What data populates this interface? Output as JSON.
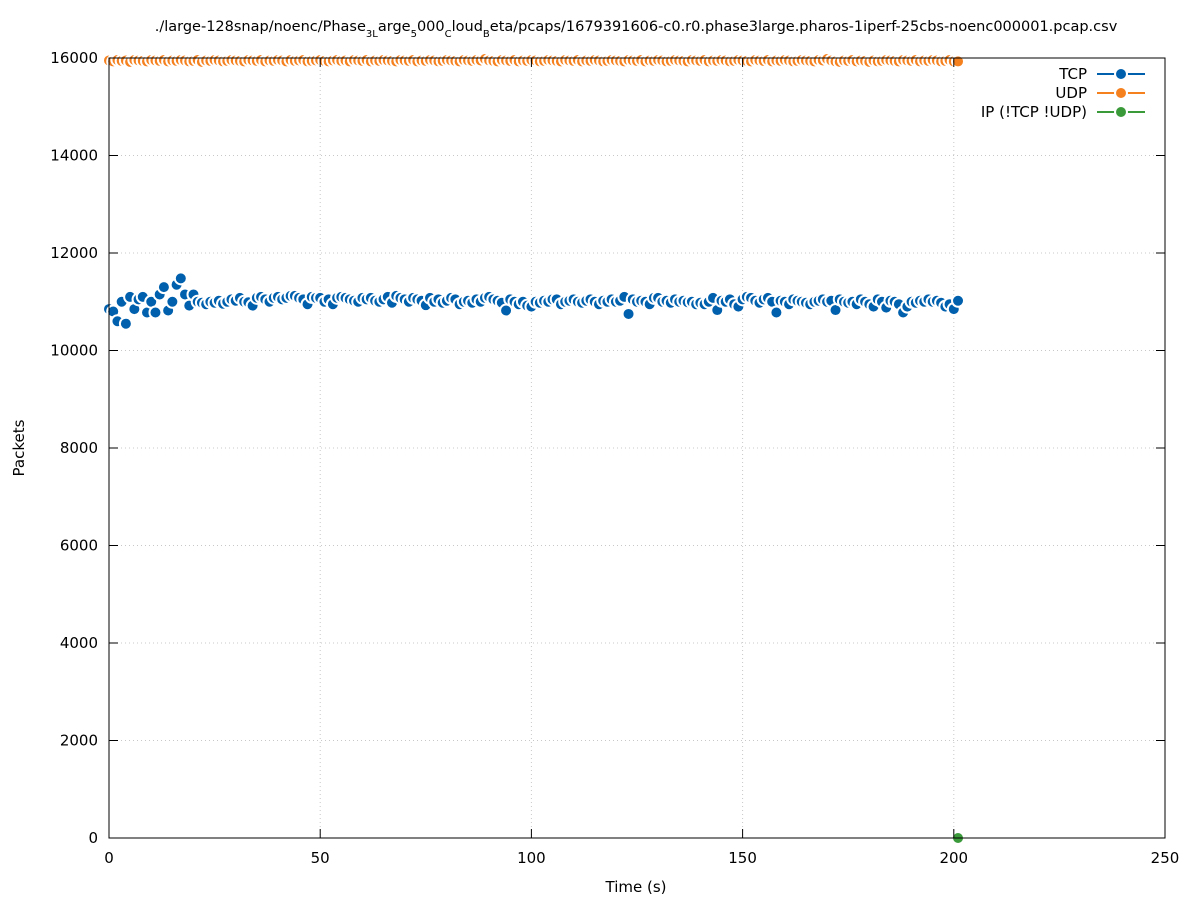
{
  "chart_data": {
    "type": "scatter",
    "title": [
      "./large-128snap/noenc/Phase",
      "3L",
      "arge",
      "5",
      "000",
      "C",
      "loud",
      "B",
      "eta/pcaps/1679391606-c0.r0.phase3large.pharos-1iperf-25cbs-noenc000001.pcap.csv"
    ],
    "x_label": "Time (s)",
    "y_label": "Packets",
    "xlim": [
      0,
      250
    ],
    "xticks": [
      0,
      50,
      100,
      150,
      200,
      250
    ],
    "ylim": [
      0,
      16000
    ],
    "yticks": [
      0,
      2000,
      4000,
      6000,
      8000,
      10000,
      12000,
      14000,
      16000
    ],
    "grid": true,
    "legend": "top right",
    "series": [
      {
        "name": "TCP",
        "color": "#0060ad",
        "x": [
          0,
          1,
          2,
          3,
          4,
          5,
          6,
          7,
          8,
          9,
          10,
          11,
          12,
          13,
          14,
          15,
          16,
          17,
          18,
          19,
          20,
          21,
          22,
          23,
          24,
          25,
          26,
          27,
          28,
          29,
          30,
          31,
          32,
          33,
          34,
          35,
          36,
          37,
          38,
          39,
          40,
          41,
          42,
          43,
          44,
          45,
          46,
          47,
          48,
          49,
          50,
          51,
          52,
          53,
          54,
          55,
          56,
          57,
          58,
          59,
          60,
          61,
          62,
          63,
          64,
          65,
          66,
          67,
          68,
          69,
          70,
          71,
          72,
          73,
          74,
          75,
          76,
          77,
          78,
          79,
          80,
          81,
          82,
          83,
          84,
          85,
          86,
          87,
          88,
          89,
          90,
          91,
          92,
          93,
          94,
          95,
          96,
          97,
          98,
          99,
          100,
          101,
          102,
          103,
          104,
          105,
          106,
          107,
          108,
          109,
          110,
          111,
          112,
          113,
          114,
          115,
          116,
          117,
          118,
          119,
          120,
          121,
          122,
          123,
          124,
          125,
          126,
          127,
          128,
          129,
          130,
          131,
          132,
          133,
          134,
          135,
          136,
          137,
          138,
          139,
          140,
          141,
          142,
          143,
          144,
          145,
          146,
          147,
          148,
          149,
          150,
          151,
          152,
          153,
          154,
          155,
          156,
          157,
          158,
          159,
          160,
          161,
          162,
          163,
          164,
          165,
          166,
          167,
          168,
          169,
          170,
          171,
          172,
          173,
          174,
          175,
          176,
          177,
          178,
          179,
          180,
          181,
          182,
          183,
          184,
          185,
          186,
          187,
          188,
          189,
          190,
          191,
          192,
          193,
          194,
          195,
          196,
          197,
          198,
          199,
          200,
          201
        ],
        "values": [
          10850,
          10800,
          10600,
          11000,
          10550,
          11100,
          10850,
          11050,
          11100,
          10780,
          11000,
          10780,
          11150,
          11300,
          10820,
          11000,
          11350,
          11480,
          11150,
          10920,
          11150,
          11000,
          10980,
          10950,
          11000,
          10980,
          11020,
          10960,
          11000,
          11050,
          11020,
          11080,
          11000,
          10990,
          10920,
          11080,
          11100,
          11050,
          11000,
          11080,
          11100,
          11050,
          11080,
          11120,
          11120,
          11080,
          11050,
          10950,
          11100,
          11080,
          11080,
          11000,
          11050,
          10950,
          11080,
          11100,
          11080,
          11050,
          11020,
          11000,
          11080,
          11050,
          11080,
          11020,
          11000,
          11050,
          11100,
          10980,
          11120,
          11080,
          11050,
          11000,
          11080,
          11050,
          11020,
          10930,
          11080,
          11000,
          11050,
          10980,
          11020,
          11080,
          11050,
          10950,
          11000,
          11020,
          10980,
          11050,
          11000,
          11080,
          11100,
          11050,
          11020,
          10980,
          10820,
          11050,
          11000,
          10950,
          11000,
          10920,
          10900,
          11000,
          10980,
          11020,
          11000,
          11050,
          11050,
          10950,
          11000,
          11020,
          11050,
          11000,
          10980,
          11020,
          11050,
          11000,
          10950,
          11020,
          11000,
          11050,
          11000,
          11020,
          11100,
          10750,
          11050,
          11000,
          11020,
          11000,
          10950,
          11080,
          11080,
          11000,
          11020,
          10980,
          11050,
          11000,
          11020,
          10990,
          11000,
          10950,
          10980,
          10950,
          11000,
          11080,
          10830,
          11020,
          11000,
          11050,
          10950,
          10900,
          11050,
          11100,
          11080,
          11020,
          10980,
          11050,
          11080,
          11000,
          10780,
          11020,
          11000,
          10950,
          11050,
          11020,
          11000,
          10980,
          10950,
          11000,
          11020,
          11050,
          11000,
          11020,
          10830,
          11050,
          11000,
          10980,
          11000,
          10950,
          11050,
          11000,
          10950,
          10900,
          11050,
          11000,
          10880,
          11020,
          11000,
          10950,
          10780,
          10900,
          11000,
          10980,
          11020,
          11000,
          11050,
          11000,
          11020,
          10980,
          10900,
          10950,
          10850,
          11020
        ]
      },
      {
        "name": "UDP",
        "color": "#f5801e",
        "x": [
          0,
          1,
          2,
          3,
          4,
          5,
          6,
          7,
          8,
          9,
          10,
          11,
          12,
          13,
          14,
          15,
          16,
          17,
          18,
          19,
          20,
          21,
          22,
          23,
          24,
          25,
          26,
          27,
          28,
          29,
          30,
          31,
          32,
          33,
          34,
          35,
          36,
          37,
          38,
          39,
          40,
          41,
          42,
          43,
          44,
          45,
          46,
          47,
          48,
          49,
          50,
          51,
          52,
          53,
          54,
          55,
          56,
          57,
          58,
          59,
          60,
          61,
          62,
          63,
          64,
          65,
          66,
          67,
          68,
          69,
          70,
          71,
          72,
          73,
          74,
          75,
          76,
          77,
          78,
          79,
          80,
          81,
          82,
          83,
          84,
          85,
          86,
          87,
          88,
          89,
          90,
          91,
          92,
          93,
          94,
          95,
          96,
          97,
          98,
          99,
          100,
          101,
          102,
          103,
          104,
          105,
          106,
          107,
          108,
          109,
          110,
          111,
          112,
          113,
          114,
          115,
          116,
          117,
          118,
          119,
          120,
          121,
          122,
          123,
          124,
          125,
          126,
          127,
          128,
          129,
          130,
          131,
          132,
          133,
          134,
          135,
          136,
          137,
          138,
          139,
          140,
          141,
          142,
          143,
          144,
          145,
          146,
          147,
          148,
          149,
          150,
          151,
          152,
          153,
          154,
          155,
          156,
          157,
          158,
          159,
          160,
          161,
          162,
          163,
          164,
          165,
          166,
          167,
          168,
          169,
          170,
          171,
          172,
          173,
          174,
          175,
          176,
          177,
          178,
          179,
          180,
          181,
          182,
          183,
          184,
          185,
          186,
          187,
          188,
          189,
          190,
          191,
          192,
          193,
          194,
          195,
          196,
          197,
          198,
          199,
          200,
          201
        ],
        "values": [
          15950,
          15930,
          15960,
          15940,
          15950,
          15920,
          15960,
          15950,
          15940,
          15930,
          15960,
          15950,
          15940,
          15960,
          15930,
          15950,
          15940,
          15960,
          15950,
          15930,
          15940,
          15960,
          15920,
          15950,
          15940,
          15960,
          15950,
          15930,
          15940,
          15960,
          15950,
          15940,
          15930,
          15960,
          15950,
          15940,
          15960,
          15930,
          15950,
          15940,
          15960,
          15950,
          15930,
          15960,
          15940,
          15950,
          15960,
          15930,
          15940,
          15950,
          15960,
          15940,
          15930,
          15950,
          15960,
          15940,
          15950,
          15930,
          15960,
          15950,
          15940,
          15960,
          15930,
          15950,
          15940,
          15960,
          15950,
          15940,
          15930,
          15960,
          15950,
          15940,
          15960,
          15930,
          15950,
          15940,
          15960,
          15950,
          15930,
          15940,
          15960,
          15950,
          15940,
          15930,
          15960,
          15950,
          15940,
          15960,
          15950,
          15980,
          15950,
          15940,
          15930,
          15960,
          15950,
          15940,
          15960,
          15930,
          15950,
          15940,
          15960,
          15950,
          15930,
          15940,
          15960,
          15950,
          15940,
          15930,
          15960,
          15950,
          15940,
          15960,
          15930,
          15950,
          15940,
          15960,
          15950,
          15930,
          15940,
          15960,
          15950,
          15940,
          15930,
          15960,
          15950,
          15940,
          15960,
          15930,
          15950,
          15940,
          15960,
          15950,
          15930,
          15940,
          15960,
          15950,
          15940,
          15930,
          15960,
          15950,
          15940,
          15960,
          15930,
          15950,
          15940,
          15960,
          15950,
          15930,
          15940,
          15960,
          15950,
          15940,
          15930,
          15960,
          15950,
          15940,
          15960,
          15930,
          15950,
          15940,
          15960,
          15950,
          15930,
          15940,
          15960,
          15950,
          15940,
          15930,
          15960,
          15950,
          15980,
          15950,
          15930,
          15920,
          15950,
          15940,
          15960,
          15930,
          15950,
          15940,
          15920,
          15950,
          15930,
          15940,
          15960,
          15950,
          15940,
          15930,
          15960,
          15950,
          15940,
          15960,
          15930,
          15950,
          15940,
          15960,
          15950,
          15930,
          15940,
          15960,
          15930,
          15930
        ]
      },
      {
        "name": "IP (!TCP  !UDP)",
        "color": "#3a9a3a",
        "x": [
          201
        ],
        "values": [
          0
        ]
      }
    ]
  }
}
